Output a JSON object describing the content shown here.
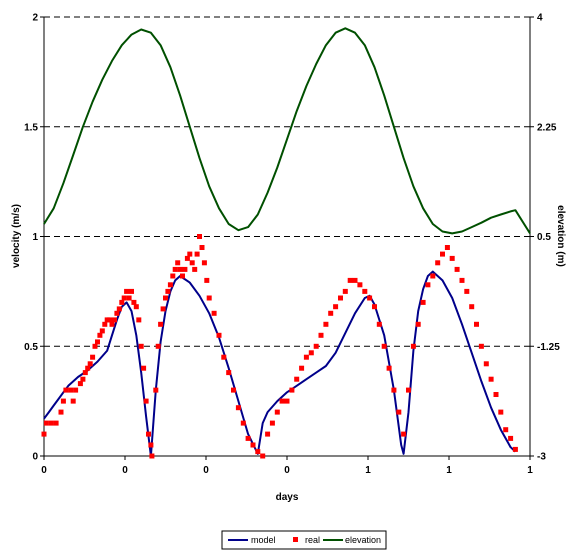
{
  "chart_data": {
    "type": "line",
    "xlabel": "days",
    "ylabel_left": "velocity (m/s)",
    "ylabel_right": "elevation (m)",
    "grid": "dashed horizontal",
    "legend_position": "bottom",
    "x_range": [
      0,
      1
    ],
    "x_ticks": [
      "0",
      "0",
      "0",
      "0",
      "1",
      "1",
      "1"
    ],
    "y_left": {
      "range": [
        0,
        2
      ],
      "ticks": [
        "0",
        "0.5",
        "1",
        "1.5",
        "2"
      ]
    },
    "y_right": {
      "range": [
        -3,
        4
      ],
      "ticks": [
        "-3",
        "-1.25",
        "0.5",
        "2.25",
        "4"
      ]
    },
    "colors": {
      "model": "#00008b",
      "real": "#ff0000",
      "elevation": "#005000",
      "grid": "#000000"
    },
    "series": [
      {
        "name": "model",
        "axis": "left",
        "style": "line",
        "points": [
          [
            0.0,
            0.17
          ],
          [
            0.01,
            0.2
          ],
          [
            0.02,
            0.23
          ],
          [
            0.03,
            0.26
          ],
          [
            0.04,
            0.29
          ],
          [
            0.05,
            0.32
          ],
          [
            0.07,
            0.36
          ],
          [
            0.09,
            0.39
          ],
          [
            0.11,
            0.43
          ],
          [
            0.13,
            0.48
          ],
          [
            0.14,
            0.55
          ],
          [
            0.15,
            0.62
          ],
          [
            0.16,
            0.68
          ],
          [
            0.17,
            0.7
          ],
          [
            0.18,
            0.66
          ],
          [
            0.19,
            0.55
          ],
          [
            0.2,
            0.38
          ],
          [
            0.21,
            0.18
          ],
          [
            0.22,
            0.0
          ],
          [
            0.23,
            0.3
          ],
          [
            0.24,
            0.52
          ],
          [
            0.25,
            0.66
          ],
          [
            0.26,
            0.75
          ],
          [
            0.27,
            0.8
          ],
          [
            0.28,
            0.82
          ],
          [
            0.3,
            0.79
          ],
          [
            0.32,
            0.73
          ],
          [
            0.34,
            0.65
          ],
          [
            0.36,
            0.54
          ],
          [
            0.38,
            0.4
          ],
          [
            0.4,
            0.25
          ],
          [
            0.42,
            0.1
          ],
          [
            0.44,
            0.01
          ],
          [
            0.45,
            0.15
          ],
          [
            0.46,
            0.2
          ],
          [
            0.48,
            0.25
          ],
          [
            0.5,
            0.29
          ],
          [
            0.52,
            0.32
          ],
          [
            0.54,
            0.35
          ],
          [
            0.56,
            0.38
          ],
          [
            0.58,
            0.41
          ],
          [
            0.6,
            0.47
          ],
          [
            0.62,
            0.56
          ],
          [
            0.64,
            0.65
          ],
          [
            0.66,
            0.72
          ],
          [
            0.67,
            0.73
          ],
          [
            0.68,
            0.69
          ],
          [
            0.7,
            0.55
          ],
          [
            0.72,
            0.3
          ],
          [
            0.735,
            0.05
          ],
          [
            0.74,
            0.01
          ],
          [
            0.75,
            0.2
          ],
          [
            0.76,
            0.48
          ],
          [
            0.77,
            0.66
          ],
          [
            0.78,
            0.76
          ],
          [
            0.79,
            0.82
          ],
          [
            0.8,
            0.84
          ],
          [
            0.82,
            0.8
          ],
          [
            0.84,
            0.72
          ],
          [
            0.86,
            0.6
          ],
          [
            0.88,
            0.47
          ],
          [
            0.9,
            0.34
          ],
          [
            0.92,
            0.22
          ],
          [
            0.94,
            0.12
          ],
          [
            0.96,
            0.04
          ],
          [
            0.97,
            0.02
          ]
        ]
      },
      {
        "name": "real",
        "axis": "left",
        "style": "markers",
        "points": [
          [
            0.0,
            0.1
          ],
          [
            0.005,
            0.15
          ],
          [
            0.015,
            0.15
          ],
          [
            0.025,
            0.15
          ],
          [
            0.035,
            0.2
          ],
          [
            0.04,
            0.25
          ],
          [
            0.045,
            0.3
          ],
          [
            0.055,
            0.3
          ],
          [
            0.06,
            0.25
          ],
          [
            0.065,
            0.3
          ],
          [
            0.075,
            0.33
          ],
          [
            0.08,
            0.35
          ],
          [
            0.085,
            0.38
          ],
          [
            0.09,
            0.4
          ],
          [
            0.095,
            0.42
          ],
          [
            0.1,
            0.45
          ],
          [
            0.105,
            0.5
          ],
          [
            0.11,
            0.52
          ],
          [
            0.115,
            0.55
          ],
          [
            0.12,
            0.57
          ],
          [
            0.125,
            0.6
          ],
          [
            0.13,
            0.62
          ],
          [
            0.135,
            0.62
          ],
          [
            0.14,
            0.6
          ],
          [
            0.145,
            0.62
          ],
          [
            0.15,
            0.65
          ],
          [
            0.155,
            0.67
          ],
          [
            0.16,
            0.7
          ],
          [
            0.165,
            0.72
          ],
          [
            0.17,
            0.75
          ],
          [
            0.175,
            0.72
          ],
          [
            0.18,
            0.75
          ],
          [
            0.185,
            0.7
          ],
          [
            0.19,
            0.68
          ],
          [
            0.195,
            0.62
          ],
          [
            0.2,
            0.5
          ],
          [
            0.205,
            0.4
          ],
          [
            0.21,
            0.25
          ],
          [
            0.215,
            0.1
          ],
          [
            0.22,
            0.05
          ],
          [
            0.222,
            0.0
          ],
          [
            0.23,
            0.3
          ],
          [
            0.235,
            0.5
          ],
          [
            0.24,
            0.6
          ],
          [
            0.245,
            0.67
          ],
          [
            0.25,
            0.72
          ],
          [
            0.255,
            0.75
          ],
          [
            0.26,
            0.78
          ],
          [
            0.265,
            0.82
          ],
          [
            0.27,
            0.85
          ],
          [
            0.275,
            0.88
          ],
          [
            0.28,
            0.85
          ],
          [
            0.285,
            0.82
          ],
          [
            0.29,
            0.85
          ],
          [
            0.295,
            0.9
          ],
          [
            0.3,
            0.92
          ],
          [
            0.305,
            0.88
          ],
          [
            0.31,
            0.85
          ],
          [
            0.315,
            0.92
          ],
          [
            0.32,
            1.0
          ],
          [
            0.325,
            0.95
          ],
          [
            0.33,
            0.88
          ],
          [
            0.335,
            0.8
          ],
          [
            0.34,
            0.72
          ],
          [
            0.35,
            0.65
          ],
          [
            0.36,
            0.55
          ],
          [
            0.37,
            0.45
          ],
          [
            0.38,
            0.38
          ],
          [
            0.39,
            0.3
          ],
          [
            0.4,
            0.22
          ],
          [
            0.41,
            0.15
          ],
          [
            0.42,
            0.08
          ],
          [
            0.43,
            0.05
          ],
          [
            0.44,
            0.02
          ],
          [
            0.45,
            0.0
          ],
          [
            0.46,
            0.1
          ],
          [
            0.47,
            0.15
          ],
          [
            0.48,
            0.2
          ],
          [
            0.49,
            0.25
          ],
          [
            0.5,
            0.25
          ],
          [
            0.51,
            0.3
          ],
          [
            0.52,
            0.35
          ],
          [
            0.53,
            0.4
          ],
          [
            0.54,
            0.45
          ],
          [
            0.55,
            0.47
          ],
          [
            0.56,
            0.5
          ],
          [
            0.57,
            0.55
          ],
          [
            0.58,
            0.6
          ],
          [
            0.59,
            0.65
          ],
          [
            0.6,
            0.68
          ],
          [
            0.61,
            0.72
          ],
          [
            0.62,
            0.75
          ],
          [
            0.63,
            0.8
          ],
          [
            0.64,
            0.8
          ],
          [
            0.65,
            0.78
          ],
          [
            0.66,
            0.75
          ],
          [
            0.67,
            0.72
          ],
          [
            0.68,
            0.68
          ],
          [
            0.69,
            0.6
          ],
          [
            0.7,
            0.5
          ],
          [
            0.71,
            0.4
          ],
          [
            0.72,
            0.3
          ],
          [
            0.73,
            0.2
          ],
          [
            0.74,
            0.1
          ],
          [
            0.75,
            0.3
          ],
          [
            0.76,
            0.5
          ],
          [
            0.77,
            0.6
          ],
          [
            0.78,
            0.7
          ],
          [
            0.79,
            0.78
          ],
          [
            0.8,
            0.82
          ],
          [
            0.81,
            0.88
          ],
          [
            0.82,
            0.92
          ],
          [
            0.83,
            0.95
          ],
          [
            0.84,
            0.9
          ],
          [
            0.85,
            0.85
          ],
          [
            0.86,
            0.8
          ],
          [
            0.87,
            0.75
          ],
          [
            0.88,
            0.68
          ],
          [
            0.89,
            0.6
          ],
          [
            0.9,
            0.5
          ],
          [
            0.91,
            0.42
          ],
          [
            0.92,
            0.35
          ],
          [
            0.93,
            0.28
          ],
          [
            0.94,
            0.2
          ],
          [
            0.95,
            0.12
          ],
          [
            0.96,
            0.08
          ],
          [
            0.97,
            0.03
          ]
        ]
      },
      {
        "name": "elevation",
        "axis": "right",
        "style": "line",
        "points": [
          [
            0.0,
            0.7
          ],
          [
            0.02,
            0.95
          ],
          [
            0.04,
            1.35
          ],
          [
            0.06,
            1.8
          ],
          [
            0.08,
            2.25
          ],
          [
            0.1,
            2.65
          ],
          [
            0.12,
            3.0
          ],
          [
            0.14,
            3.3
          ],
          [
            0.16,
            3.55
          ],
          [
            0.18,
            3.72
          ],
          [
            0.2,
            3.8
          ],
          [
            0.22,
            3.75
          ],
          [
            0.24,
            3.55
          ],
          [
            0.26,
            3.2
          ],
          [
            0.28,
            2.75
          ],
          [
            0.3,
            2.25
          ],
          [
            0.32,
            1.75
          ],
          [
            0.34,
            1.3
          ],
          [
            0.36,
            0.95
          ],
          [
            0.38,
            0.7
          ],
          [
            0.4,
            0.6
          ],
          [
            0.42,
            0.65
          ],
          [
            0.44,
            0.85
          ],
          [
            0.46,
            1.2
          ],
          [
            0.48,
            1.6
          ],
          [
            0.5,
            2.05
          ],
          [
            0.52,
            2.5
          ],
          [
            0.54,
            2.9
          ],
          [
            0.56,
            3.25
          ],
          [
            0.58,
            3.55
          ],
          [
            0.6,
            3.75
          ],
          [
            0.62,
            3.82
          ],
          [
            0.64,
            3.75
          ],
          [
            0.66,
            3.55
          ],
          [
            0.68,
            3.2
          ],
          [
            0.7,
            2.75
          ],
          [
            0.72,
            2.25
          ],
          [
            0.74,
            1.75
          ],
          [
            0.76,
            1.3
          ],
          [
            0.78,
            0.95
          ],
          [
            0.8,
            0.7
          ],
          [
            0.82,
            0.58
          ],
          [
            0.84,
            0.55
          ],
          [
            0.86,
            0.58
          ],
          [
            0.88,
            0.65
          ],
          [
            0.9,
            0.72
          ],
          [
            0.92,
            0.8
          ],
          [
            0.94,
            0.85
          ],
          [
            0.96,
            0.9
          ],
          [
            0.97,
            0.92
          ],
          [
            1.0,
            0.55
          ]
        ]
      }
    ]
  }
}
